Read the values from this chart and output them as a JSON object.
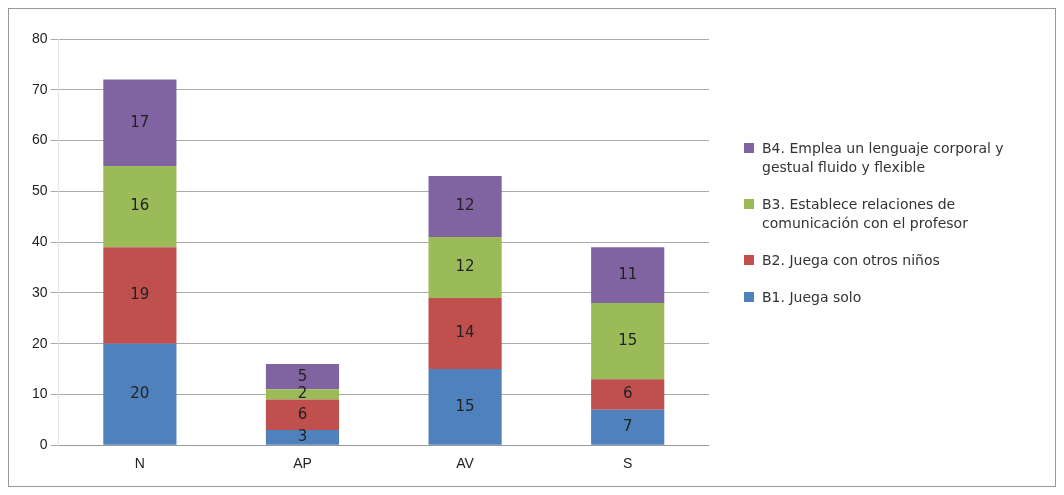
{
  "chart_data": {
    "type": "bar",
    "stacked": true,
    "categories": [
      "N",
      "AP",
      "AV",
      "S"
    ],
    "series": [
      {
        "name": "B1. Juega solo",
        "color": "#4f81bd",
        "values": [
          20,
          3,
          15,
          7
        ]
      },
      {
        "name": "B2. Juega con otros niños",
        "color": "#c0504d",
        "values": [
          19,
          6,
          14,
          6
        ]
      },
      {
        "name": "B3. Establece relaciones de comunicación con el profesor",
        "color": "#9bbb59",
        "values": [
          16,
          2,
          12,
          15
        ]
      },
      {
        "name": "B4.  Emplea un lenguaje corporal y gestual fluido y flexible",
        "color": "#8064a2",
        "values": [
          17,
          5,
          12,
          11
        ]
      }
    ],
    "ylim": [
      0,
      80
    ],
    "yticks": [
      0,
      10,
      20,
      30,
      40,
      50,
      60,
      70,
      80
    ],
    "grid": "y",
    "legend": "right",
    "data_labels": true
  }
}
